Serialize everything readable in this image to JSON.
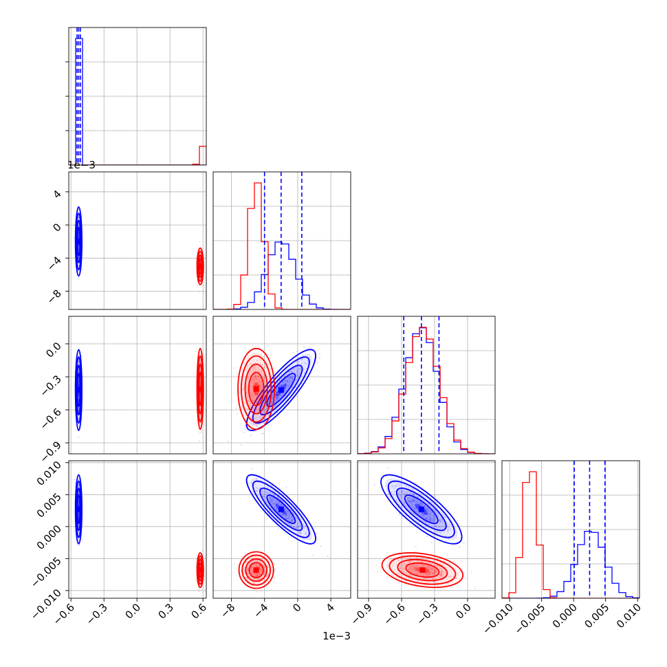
{
  "chart_data": {
    "type": "corner",
    "parameters": 4,
    "offsets": [
      "",
      "1e−3",
      "",
      ""
    ],
    "tick_labels": [
      [
        "−0.6",
        "−0.3",
        "0.0",
        "0.3",
        "0.6"
      ],
      [
        "−8",
        "−4",
        "0",
        "4"
      ],
      [
        "−0.9",
        "−0.6",
        "−0.3",
        "0.0"
      ],
      [
        "−0.010",
        "−0.005",
        "0.000",
        "0.005",
        "0.010"
      ]
    ],
    "tick_values": [
      [
        -0.6,
        -0.3,
        0.0,
        0.3,
        0.6
      ],
      [
        -8,
        -4,
        0,
        4
      ],
      [
        -0.9,
        -0.6,
        -0.3,
        0.0
      ],
      [
        -0.01,
        -0.005,
        0.0,
        0.005,
        0.01
      ]
    ],
    "ranges": [
      [
        -0.62,
        0.63
      ],
      [
        -10.2,
        6.4
      ],
      [
        -1.0,
        0.25
      ],
      [
        -0.0112,
        0.0103
      ]
    ],
    "series": [
      {
        "color": "#0000ff",
        "mean": [
          -0.53,
          -2.0,
          -0.42,
          0.0027
        ],
        "sd": [
          0.012,
          1.7,
          0.15,
          0.0022
        ]
      },
      {
        "color": "#ff0000",
        "mean": [
          0.575,
          -5.0,
          -0.41,
          -0.0068
        ],
        "sd": [
          0.012,
          0.9,
          0.15,
          0.0011
        ]
      }
    ],
    "correlations": [
      {
        "series": 0,
        "pair": [
          1,
          2
        ],
        "r": 0.85
      },
      {
        "series": 0,
        "pair": [
          1,
          3
        ],
        "r": -0.85
      },
      {
        "series": 0,
        "pair": [
          2,
          3
        ],
        "r": -0.8
      },
      {
        "series": 1,
        "pair": [
          2,
          3
        ],
        "r": -0.3
      }
    ],
    "quantile_lines": {
      "color": "#0000ff",
      "values": [
        [
          -0.545,
          -0.53,
          -0.515
        ],
        [
          -4.0,
          -2.0,
          0.5
        ],
        [
          -0.58,
          -0.42,
          -0.26
        ],
        [
          0.0001,
          0.0025,
          0.0049
        ]
      ]
    },
    "grid": true
  }
}
